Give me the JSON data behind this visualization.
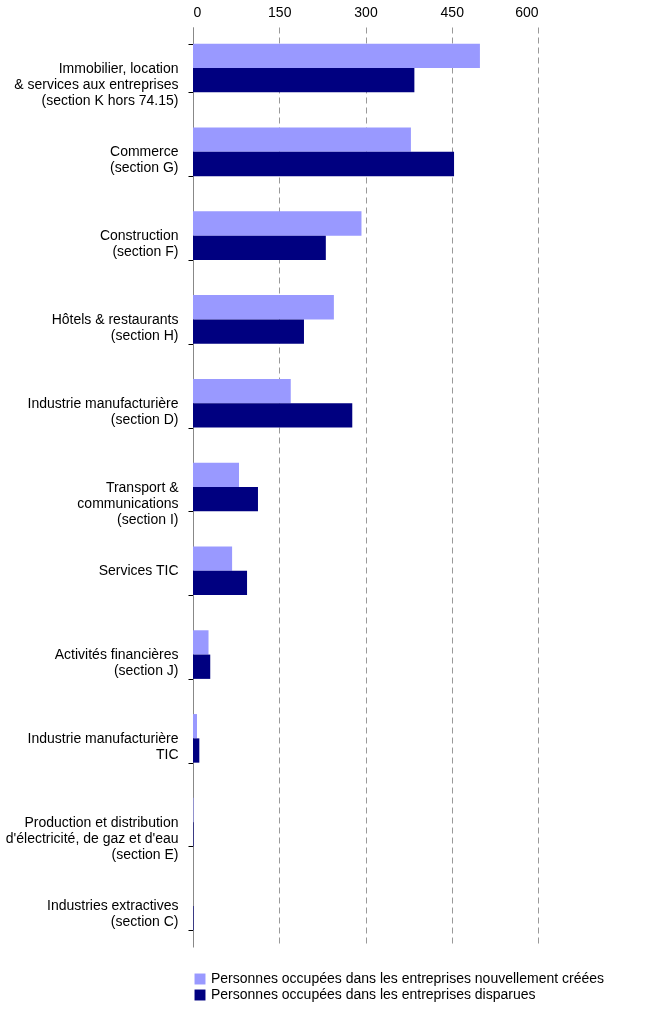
{
  "chart_data": {
    "type": "bar",
    "orientation": "horizontal",
    "categories": [
      "Immobilier, location\n& services aux entreprises\n(section K hors 74.15)",
      "Commerce\n(section G)",
      "Construction\n(section F)",
      "Hôtels & restaurants\n(section H)",
      "Industrie manufacturière\n(section D)",
      "Transport &\ncommunications\n(section I)",
      "Services TIC",
      "Activités financières\n(section J)",
      "Industrie manufacturière\nTIC",
      "Production et distribution\nd'électricité, de gaz et d'eau\n(section E)",
      "Industries extractives\n(section C)"
    ],
    "series": [
      {
        "name": "Personnes occupées dans les entreprises nouvellement créées",
        "color": "#9999ff",
        "values": [
          499,
          379,
          293,
          245,
          170,
          80,
          68,
          27,
          7,
          1,
          0
        ]
      },
      {
        "name": "Personnes occupées dans les entreprises disparues",
        "color": "#000080",
        "values": [
          385,
          454,
          231,
          193,
          277,
          113,
          94,
          30,
          11,
          1,
          1
        ]
      }
    ],
    "xlim": [
      0,
      600
    ],
    "xticks": [
      0,
      150,
      300,
      450,
      600
    ],
    "grid": "x",
    "legend": "bottom"
  }
}
